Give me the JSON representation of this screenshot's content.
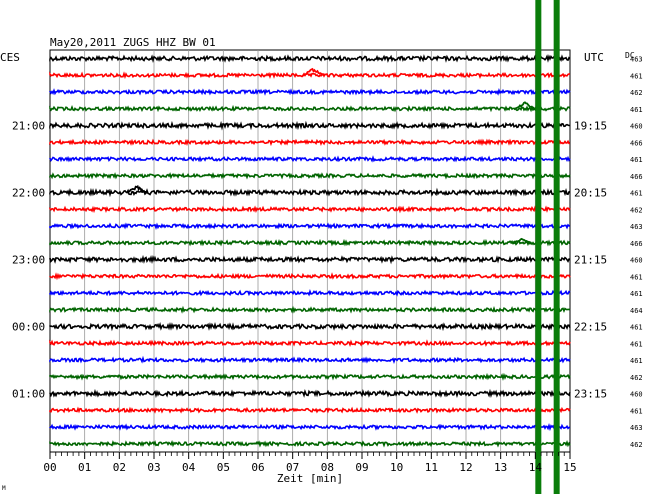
{
  "chart_data": {
    "type": "line",
    "title": "May20,2011   ZUGS HHZ BW 01",
    "left_axis_title": "CES",
    "right_axis_title": "UTC",
    "dc_label": "DC",
    "xlabel": "Zeit [min]",
    "x_ticks": [
      "00",
      "01",
      "02",
      "03",
      "04",
      "05",
      "06",
      "07",
      "08",
      "09",
      "10",
      "11",
      "12",
      "13",
      "14",
      "15"
    ],
    "xlim": [
      0,
      15
    ],
    "left_time_labels": [
      {
        "trace": 4,
        "label": "21:00"
      },
      {
        "trace": 8,
        "label": "22:00"
      },
      {
        "trace": 12,
        "label": "23:00"
      },
      {
        "trace": 16,
        "label": "00:00"
      },
      {
        "trace": 20,
        "label": "01:00"
      }
    ],
    "right_time_labels": [
      {
        "trace": 4,
        "label": "19:15"
      },
      {
        "trace": 8,
        "label": "20:15"
      },
      {
        "trace": 12,
        "label": "21:15"
      },
      {
        "trace": 16,
        "label": "22:15"
      },
      {
        "trace": 20,
        "label": "23:15"
      }
    ],
    "trace_colors": [
      "#000000",
      "#ff0000",
      "#0000ff",
      "#006400"
    ],
    "dc_offsets": [
      463,
      461,
      462,
      461,
      460,
      466,
      461,
      466,
      461,
      462,
      463,
      466,
      460,
      461,
      461,
      464,
      461,
      461,
      461,
      462,
      460,
      461,
      463,
      462
    ],
    "events": [
      {
        "trace": 1,
        "minute": 7.6,
        "amplitude": 8,
        "color": "#ff0000"
      },
      {
        "trace": 3,
        "minute": 13.7,
        "amplitude": 7,
        "color": "#006400"
      },
      {
        "trace": 8,
        "minute": 2.5,
        "amplitude": 7,
        "color": "#000000"
      },
      {
        "trace": 11,
        "minute": 13.6,
        "amplitude": 4,
        "color": "#006400"
      }
    ],
    "saturated_band_minutes": [
      14.0,
      14.5
    ],
    "grid": true
  },
  "footer_mark": "M"
}
